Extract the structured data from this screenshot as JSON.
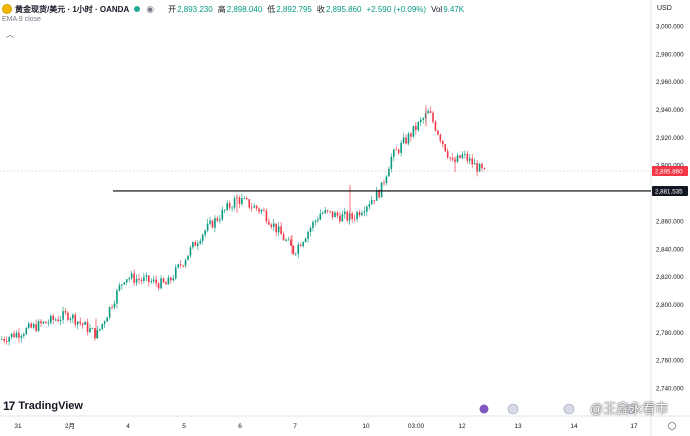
{
  "header": {
    "symbol": "黄金现货/美元 · 1小时 · OANDA",
    "camera_icon": "camera-icon",
    "open_label": "开",
    "open_value": "2,893.230",
    "high_label": "高",
    "high_value": "2,898.040",
    "low_label": "低",
    "low_value": "2,892.795",
    "close_label": "收",
    "close_value": "2,895.860",
    "change": "+2.590 (+0.09%)",
    "volume_label": "Vol",
    "volume_value": "9.47K"
  },
  "indicator": {
    "label": "EMA 9 close"
  },
  "chevron_icon": "chevron-up-icon",
  "currency": "USD",
  "branding": {
    "logo_icon": "tradingview-logo-icon",
    "name": "TradingView"
  },
  "watermark": "@王鑫永看市",
  "colors": {
    "up": "#089981",
    "down": "#f23645",
    "level_line": "#000000",
    "price_tag": "#f23645",
    "level_tag": "#131722"
  },
  "chart_data": {
    "type": "candlestick",
    "title": "黄金现货/美元 · 1小时 · OANDA",
    "ylim": [
      2740,
      3010
    ],
    "y_ticks": [
      2740,
      2760,
      2780,
      2800,
      2820,
      2840,
      2860,
      2880,
      2900,
      2920,
      2940,
      2960,
      2980,
      3000
    ],
    "y_tick_labels": [
      "2,740.000",
      "2,760.000",
      "2,780.000",
      "2,800.000",
      "2,820.000",
      "2,840.000",
      "2,860.000",
      "2,880.000",
      "2,900.000",
      "2,920.000",
      "2,940.000",
      "2,960.000",
      "2,980.000",
      "3,000.000"
    ],
    "x_tick_labels": [
      "31",
      "2月",
      "4",
      "5",
      "6",
      "7",
      "10",
      "03:00",
      "12",
      "13",
      "14",
      "17"
    ],
    "current_price": 2895.86,
    "current_price_label": "2,895.860",
    "horizontal_level": 2881.535,
    "horizontal_level_label": "2,881.535",
    "key_points": [
      {
        "x_label": "31",
        "price": 2775
      },
      {
        "x_label": "2月",
        "price": 2793
      },
      {
        "x_label": "2月",
        "price": 2778
      },
      {
        "x_label": "4",
        "price": 2820
      },
      {
        "x_label": "4",
        "price": 2814
      },
      {
        "x_label": "5",
        "price": 2850
      },
      {
        "x_label": "6",
        "price": 2876
      },
      {
        "x_label": "6",
        "price": 2867
      },
      {
        "x_label": "7",
        "price": 2838
      },
      {
        "x_label": "7",
        "price": 2866
      },
      {
        "x_label": "10",
        "price": 2862
      },
      {
        "x_label": "10",
        "price": 2882
      },
      {
        "x_label": "03:00",
        "price": 2905
      },
      {
        "x_label": "12",
        "price": 2938
      },
      {
        "x_label": "12",
        "price": 2901
      },
      {
        "x_label": "12",
        "price": 2907
      },
      {
        "x_label": "12",
        "price": 2894
      }
    ]
  }
}
